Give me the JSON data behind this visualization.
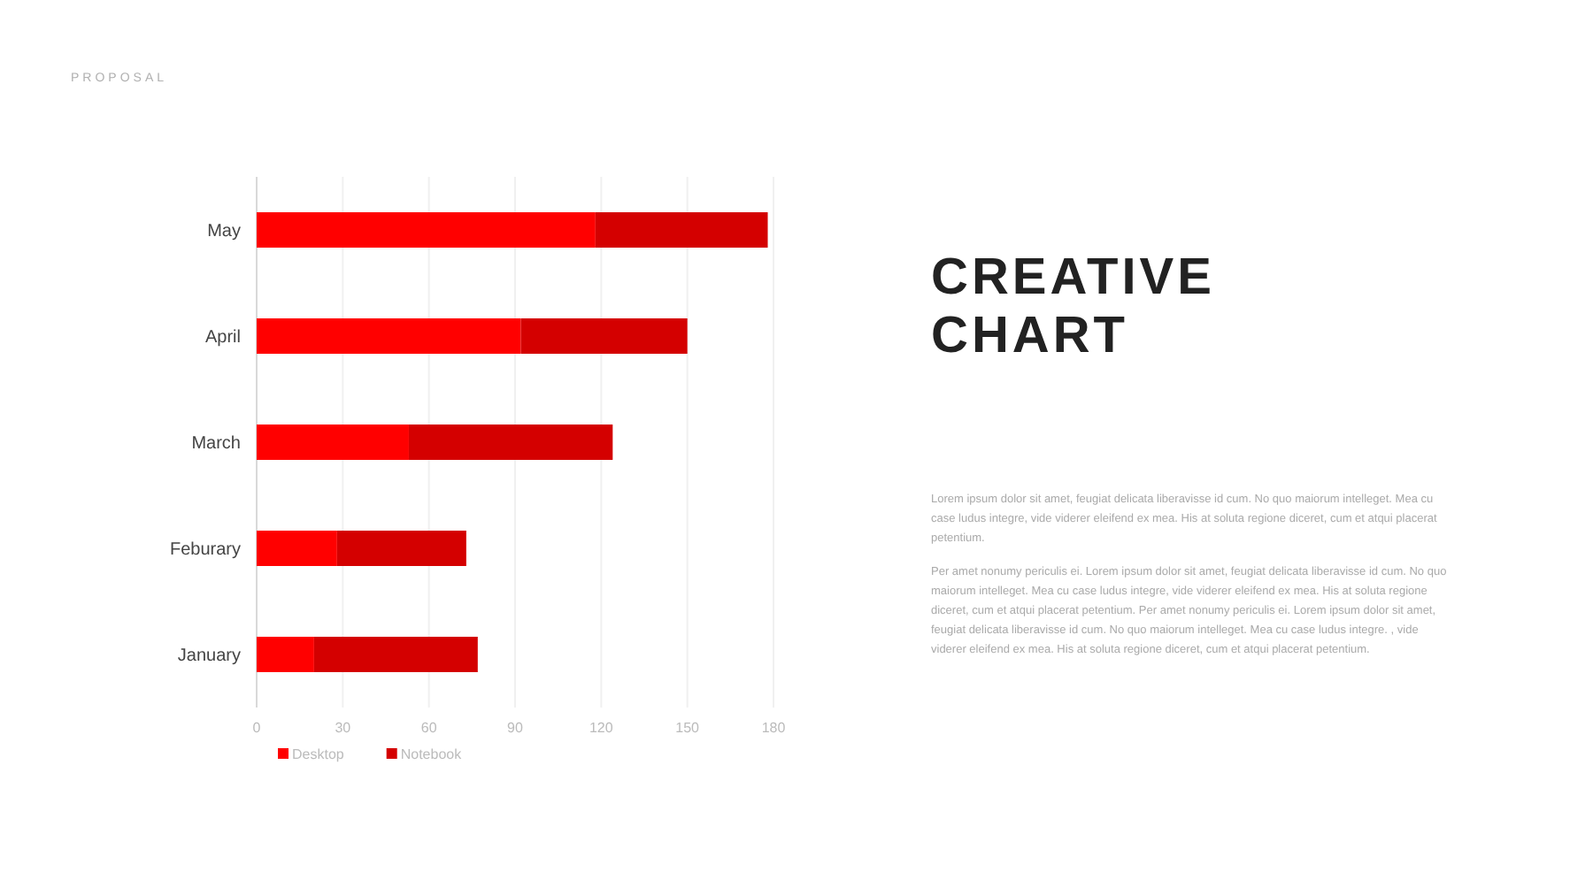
{
  "chart_data": {
    "type": "bar",
    "orientation": "horizontal",
    "stacked": true,
    "title": "CREATIVE CHART",
    "categories": [
      "May",
      "April",
      "March",
      "Feburary",
      "January"
    ],
    "series": [
      {
        "name": "Desktop",
        "color": "#ff0000",
        "values": [
          118,
          92,
          53,
          28,
          20
        ]
      },
      {
        "name": "Notebook",
        "color": "#d40000",
        "values": [
          60,
          58,
          71,
          45,
          57
        ]
      }
    ],
    "xlim": [
      0,
      180
    ],
    "xticks": [
      0,
      30,
      60,
      90,
      120,
      150,
      180
    ],
    "grid": "x",
    "legend": "bottom left",
    "annotations": [
      "PROPOSAL",
      "Lorem ipsum dolor sit amet, feugiat delicata liberavisse id cum. No quo maiorum intelleget. Mea cu case ludus integre, vide viderer eleifend ex mea. His at soluta regione diceret, cum et atqui placerat petentium.",
      "Per amet nonumy periculis ei. Lorem ipsum dolor sit amet, feugiat delicata liberavisse id cum. No quo maiorum intelleget.  Mea cu case ludus integre, vide viderer eleifend ex mea. His at soluta regione diceret, cum et atqui placerat petentium. Per amet nonumy periculis ei. Lorem ipsum dolor sit amet, feugiat delicata liberavisse id cum. No quo maiorum intelleget. Mea cu case ludus integre. , vide viderer eleifend ex mea. His at soluta regione diceret, cum et atqui placerat petentium."
    ]
  }
}
